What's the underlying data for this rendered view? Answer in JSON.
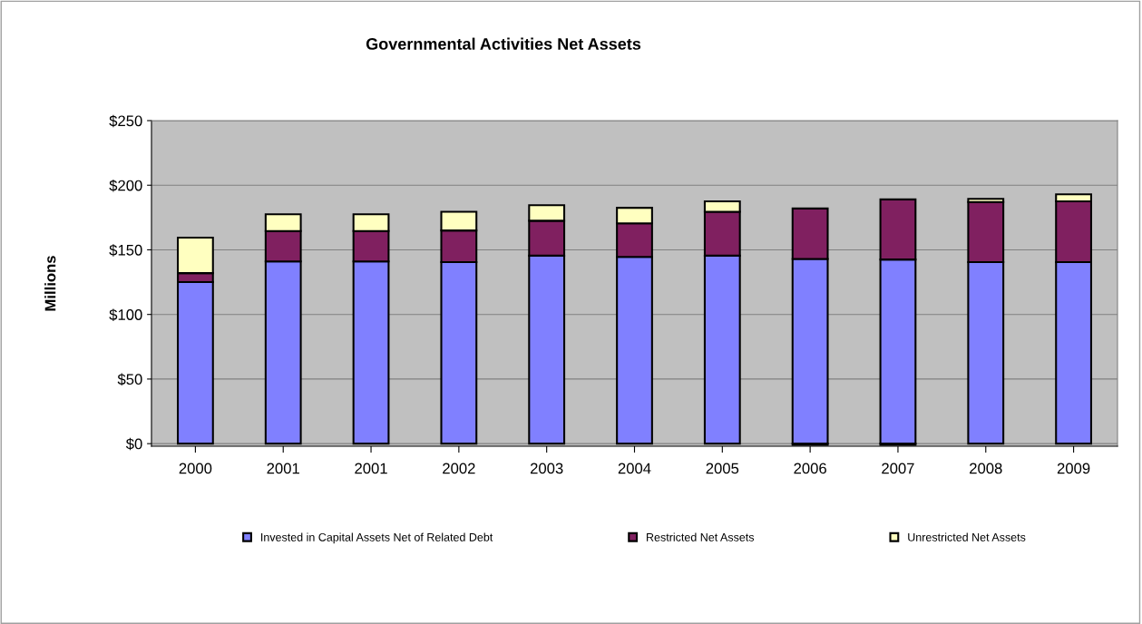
{
  "chart_data": {
    "type": "bar",
    "title": "Governmental Activities Net Assets",
    "ylabel": "Millions",
    "categories": [
      "2000",
      "2001",
      "2001",
      "2002",
      "2003",
      "2004",
      "2005",
      "2006",
      "2007",
      "2008",
      "2009"
    ],
    "stacked": true,
    "series": [
      {
        "name": "Invested in Capital Assets Net of Related Debt",
        "color": "#8080ff",
        "values": [
          125,
          141,
          141,
          140.5,
          145.5,
          144.5,
          145.5,
          143,
          142.5,
          140.5,
          140.5
        ]
      },
      {
        "name": "Restricted Net Assets",
        "color": "#802060",
        "values": [
          7,
          23.5,
          23.5,
          24.5,
          27,
          26,
          34,
          39,
          46.5,
          46.5,
          47
        ]
      },
      {
        "name": "Unrestricted Net Assets",
        "color": "#ffffc0",
        "values": [
          27.5,
          13,
          13,
          14.5,
          12,
          12,
          8,
          -1,
          -1,
          2.5,
          5.5
        ]
      }
    ],
    "ylim": [
      -2,
      250
    ],
    "yticks": [
      {
        "value": 0,
        "label": "$0"
      },
      {
        "value": 50,
        "label": "$50"
      },
      {
        "value": 100,
        "label": "$100"
      },
      {
        "value": 150,
        "label": "$150"
      },
      {
        "value": 200,
        "label": "$200"
      },
      {
        "value": 250,
        "label": "$250"
      }
    ],
    "grid": "y",
    "legend": "bottom"
  }
}
